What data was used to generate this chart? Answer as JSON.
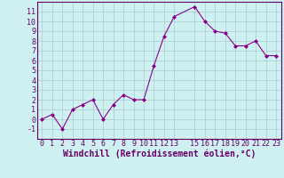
{
  "x": [
    0,
    1,
    2,
    3,
    4,
    5,
    6,
    7,
    8,
    9,
    10,
    11,
    12,
    13,
    15,
    16,
    17,
    18,
    19,
    20,
    21,
    22,
    23
  ],
  "y": [
    0,
    0.5,
    -1,
    1,
    1.5,
    2,
    0,
    1.5,
    2.5,
    2,
    2,
    5.5,
    8.5,
    10.5,
    11.5,
    10,
    9,
    8.8,
    7.5,
    7.5,
    8,
    6.5,
    6.5
  ],
  "line_color": "#880088",
  "marker_color": "#880088",
  "bg_color": "#cff0f0",
  "grid_color": "#aacccc",
  "xlabel": "Windchill (Refroidissement éolien,°C)",
  "xlim": [
    -0.5,
    23.5
  ],
  "ylim": [
    -2,
    12
  ],
  "yticks": [
    -1,
    0,
    1,
    2,
    3,
    4,
    5,
    6,
    7,
    8,
    9,
    10,
    11
  ],
  "xticks": [
    0,
    1,
    2,
    3,
    4,
    5,
    6,
    7,
    8,
    9,
    10,
    11,
    12,
    13,
    15,
    16,
    17,
    18,
    19,
    20,
    21,
    22,
    23
  ],
  "tick_fontsize": 6,
  "xlabel_fontsize": 7,
  "spine_color": "#660066"
}
